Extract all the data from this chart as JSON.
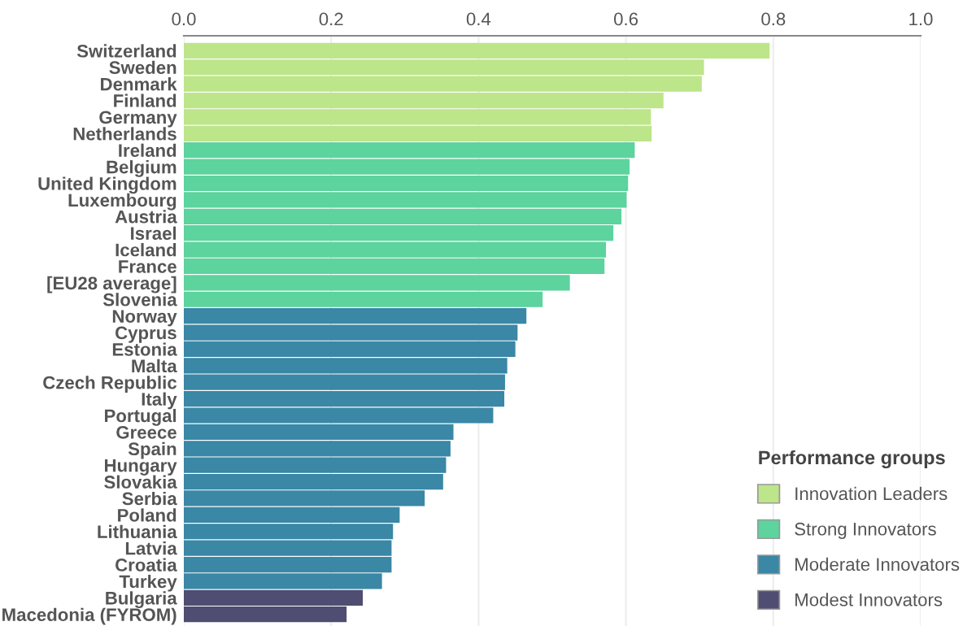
{
  "chart_data": {
    "type": "bar",
    "orientation": "horizontal",
    "legend_title": "Performance groups",
    "legend": "bottom right",
    "grid": "x",
    "categories": [
      "Switzerland",
      "Sweden",
      "Denmark",
      "Finland",
      "Germany",
      "Netherlands",
      "Ireland",
      "Belgium",
      "United Kingdom",
      "Luxembourg",
      "Austria",
      "Israel",
      "Iceland",
      "France",
      "[EU28 average]",
      "Slovenia",
      "Norway",
      "Cyprus",
      "Estonia",
      "Malta",
      "Czech Republic",
      "Italy",
      "Portugal",
      "Greece",
      "Spain",
      "Hungary",
      "Slovakia",
      "Serbia",
      "Poland",
      "Lithuania",
      "Latvia",
      "Croatia",
      "Turkey",
      "Bulgaria",
      "Macedonia (FYROM)"
    ],
    "xlim": [
      0,
      1
    ],
    "xticks": [
      {
        "value": 0,
        "label": "0.0"
      },
      0.2,
      0.4,
      0.6,
      0.8,
      {
        "value": 1,
        "label": "1.0"
      }
    ],
    "series": [
      {
        "name": "Innovation Leaders",
        "color": "#bde58a",
        "values": [
          0.794,
          0.705,
          0.702,
          0.65,
          0.633,
          0.634,
          null,
          null,
          null,
          null,
          null,
          null,
          null,
          null,
          null,
          null,
          null,
          null,
          null,
          null,
          null,
          null,
          null,
          null,
          null,
          null,
          null,
          null,
          null,
          null,
          null,
          null,
          null,
          null,
          null
        ]
      },
      {
        "name": "Strong Innovators",
        "color": "#5dd39e",
        "values": [
          null,
          null,
          null,
          null,
          null,
          null,
          0.611,
          0.604,
          0.602,
          0.6,
          0.593,
          0.582,
          0.572,
          0.57,
          0.523,
          0.486,
          null,
          null,
          null,
          null,
          null,
          null,
          null,
          null,
          null,
          null,
          null,
          null,
          null,
          null,
          null,
          null,
          null,
          null,
          null
        ]
      },
      {
        "name": "Moderate Innovators",
        "color": "#3a87a6",
        "values": [
          null,
          null,
          null,
          null,
          null,
          null,
          null,
          null,
          null,
          null,
          null,
          null,
          null,
          null,
          null,
          null,
          0.464,
          0.452,
          0.449,
          0.438,
          0.435,
          0.434,
          0.419,
          0.365,
          0.361,
          0.355,
          0.351,
          0.326,
          0.292,
          0.283,
          0.281,
          0.281,
          0.268,
          null,
          null
        ]
      },
      {
        "name": "Modest Innovators",
        "color": "#4f4d72",
        "values": [
          null,
          null,
          null,
          null,
          null,
          null,
          null,
          null,
          null,
          null,
          null,
          null,
          null,
          null,
          null,
          null,
          null,
          null,
          null,
          null,
          null,
          null,
          null,
          null,
          null,
          null,
          null,
          null,
          null,
          null,
          null,
          null,
          null,
          0.242,
          0.22
        ]
      }
    ]
  }
}
